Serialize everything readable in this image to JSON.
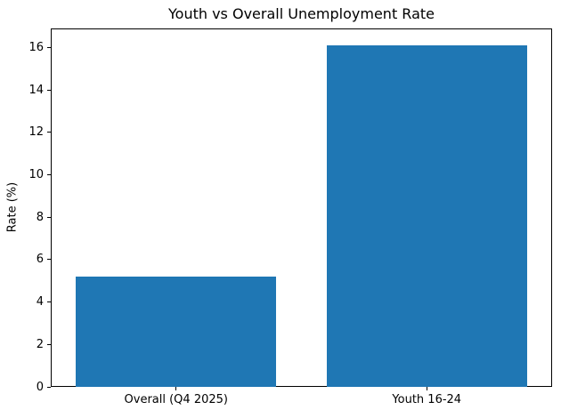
{
  "chart_data": {
    "type": "bar",
    "title": "Youth vs Overall Unemployment Rate",
    "categories": [
      "Overall (Q4 2025)",
      "Youth 16-24"
    ],
    "values": [
      5.2,
      16.1
    ],
    "xlabel": "",
    "ylabel": "Rate (%)",
    "ylim": [
      0,
      16.905
    ],
    "yticks": [
      0,
      2,
      4,
      6,
      8,
      10,
      12,
      14,
      16
    ],
    "bar_color": "#1f77b4",
    "bar_width_fraction": 0.4,
    "grid": false,
    "legend": "none",
    "spine_color": "#000000",
    "background_color": "#ffffff"
  }
}
